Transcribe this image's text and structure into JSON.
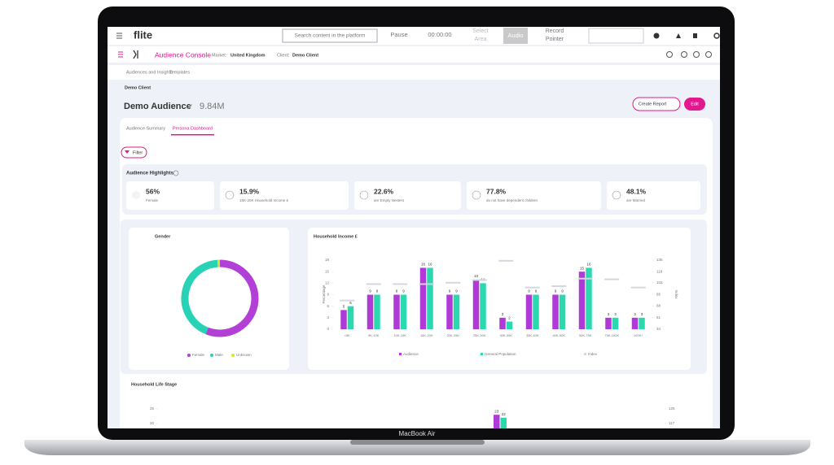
{
  "topbar": {
    "logo": "flite",
    "search": "Search content in the platform",
    "pause": "Pause",
    "timer": "00:00:00",
    "select_area": [
      "Select",
      "Area"
    ],
    "audio": "Audio",
    "record_pointer": [
      "Record",
      "Pointer"
    ]
  },
  "header": {
    "app": "Audience Console",
    "market_label": "Market:",
    "market": "United Kingdom",
    "client_label": "Client:",
    "client": "Demo Client"
  },
  "nav": [
    "Audiences and Insights",
    "Templates"
  ],
  "client": "Demo Client",
  "audience": {
    "name": "Demo Audience",
    "size": "9.84M"
  },
  "buttons": {
    "create_report": "Create Report",
    "edit": "Edit"
  },
  "tabs": [
    "Audience Summary",
    "Persona Dashboard"
  ],
  "filter": "Filter",
  "highlights": {
    "title": "Audience Highlights",
    "items": [
      {
        "value": "56%",
        "label": "Female"
      },
      {
        "value": "15.9%",
        "label": "15K-20K Household Income £"
      },
      {
        "value": "22.6%",
        "label": "are Empty Nesters"
      },
      {
        "value": "77.8%",
        "label": "do not have dependent children"
      },
      {
        "value": "48.1%",
        "label": "are Married"
      }
    ]
  },
  "gender": {
    "type": "pie",
    "title": "Gender",
    "categories": [
      "Female",
      "Male",
      "Unknown"
    ],
    "values": [
      56,
      43,
      1
    ],
    "colors": [
      "#b23fd6",
      "#27d3b4",
      "#d6e62b"
    ]
  },
  "income": {
    "type": "bar",
    "title": "Household Income £",
    "categories": [
      "<5K",
      "5K-10K",
      "10K-15K",
      "15K-20K",
      "20K-25K",
      "25K-30K",
      "30K-35K",
      "35K-40K",
      "40K-50K",
      "50K-75K",
      "75K-100K",
      "100K+"
    ],
    "series": [
      {
        "name": "Audience",
        "color": "#b03ad8",
        "values": [
          5,
          9,
          9,
          16,
          9,
          13,
          3,
          9,
          9,
          15,
          3,
          3
        ]
      },
      {
        "name": "General Population",
        "color": "#2bd8b0",
        "values": [
          6,
          9,
          9,
          16,
          9,
          12,
          2,
          9,
          9,
          16,
          3,
          3
        ]
      },
      {
        "name": "Index",
        "color": "#d3d7e0",
        "axis": "y2",
        "values": [
          76,
          100,
          100,
          100,
          102,
          106,
          134,
          95,
          97,
          108,
          107,
          95
        ]
      }
    ],
    "ylabel": "Percentage",
    "y2label": "Index",
    "ylim": [
      0,
      18
    ],
    "yticks": [
      0,
      3,
      6,
      9,
      12,
      15,
      18
    ],
    "y2lim": [
      34,
      135
    ],
    "y2ticks": [
      34,
      51,
      68,
      85,
      102,
      118,
      135
    ]
  },
  "life_stage": {
    "type": "bar",
    "title": "Household Life Stage",
    "series": [
      {
        "name": "Audience",
        "color": "#b03ad8",
        "values": [
          23
        ]
      },
      {
        "name": "General Population",
        "color": "#2bd8b0",
        "values": [
          22
        ]
      }
    ],
    "ylim": [
      0,
      25
    ],
    "yticks": [
      20,
      25
    ],
    "y2lim": [
      85,
      125
    ],
    "y2ticks": [
      117,
      125
    ]
  },
  "device": "MacBook Air"
}
